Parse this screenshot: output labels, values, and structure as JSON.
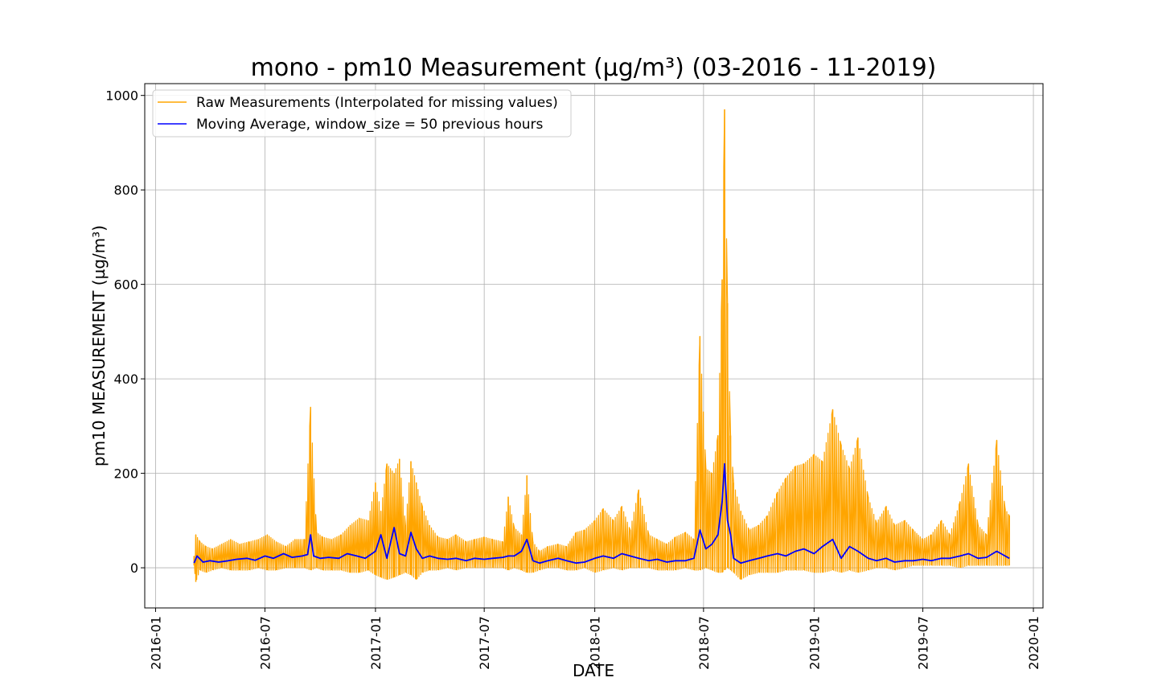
{
  "chart_data": {
    "type": "line",
    "title": "mono - pm10 Measurement (µg/m³) (03-2016 - 11-2019)",
    "xlabel": "DATE",
    "ylabel": "pm10 MEASUREMENT (µg/m³)",
    "xlim": [
      "2015-12-14",
      "2020-01-17"
    ],
    "ylim": [
      -85,
      1025
    ],
    "x_ticks": [
      "2016-01",
      "2016-07",
      "2017-01",
      "2017-07",
      "2018-01",
      "2018-07",
      "2019-01",
      "2019-07",
      "2020-01"
    ],
    "y_ticks": [
      0,
      200,
      400,
      600,
      800,
      1000
    ],
    "grid": true,
    "legend_position": "top-left",
    "series": [
      {
        "name": "Raw Measurements (Interpolated for missing values)",
        "color": "#FFA500",
        "render": "upper-lower-envelope",
        "x": [
          "2016-03-05",
          "2016-03-08",
          "2016-03-15",
          "2016-03-25",
          "2016-04-05",
          "2016-04-20",
          "2016-05-05",
          "2016-05-20",
          "2016-06-05",
          "2016-06-20",
          "2016-07-05",
          "2016-07-20",
          "2016-08-05",
          "2016-08-20",
          "2016-09-05",
          "2016-09-15",
          "2016-09-25",
          "2016-10-05",
          "2016-10-20",
          "2016-11-05",
          "2016-11-20",
          "2016-12-05",
          "2016-12-20",
          "2017-01-01",
          "2017-01-10",
          "2017-01-20",
          "2017-02-01",
          "2017-02-10",
          "2017-02-20",
          "2017-03-01",
          "2017-03-10",
          "2017-03-20",
          "2017-04-01",
          "2017-04-15",
          "2017-05-01",
          "2017-05-15",
          "2017-06-01",
          "2017-06-15",
          "2017-07-01",
          "2017-07-15",
          "2017-08-01",
          "2017-08-10",
          "2017-08-20",
          "2017-09-01",
          "2017-09-10",
          "2017-09-20",
          "2017-10-01",
          "2017-10-15",
          "2017-11-01",
          "2017-11-15",
          "2017-12-01",
          "2017-12-15",
          "2018-01-01",
          "2018-01-15",
          "2018-02-01",
          "2018-02-15",
          "2018-03-01",
          "2018-03-15",
          "2018-04-01",
          "2018-04-15",
          "2018-05-01",
          "2018-05-15",
          "2018-06-01",
          "2018-06-15",
          "2018-06-25",
          "2018-07-05",
          "2018-07-15",
          "2018-07-25",
          "2018-08-01",
          "2018-08-05",
          "2018-08-10",
          "2018-08-15",
          "2018-08-20",
          "2018-09-01",
          "2018-09-15",
          "2018-10-01",
          "2018-10-15",
          "2018-11-01",
          "2018-11-15",
          "2018-12-01",
          "2018-12-15",
          "2019-01-01",
          "2019-01-15",
          "2019-02-01",
          "2019-02-15",
          "2019-03-01",
          "2019-03-15",
          "2019-04-01",
          "2019-04-15",
          "2019-05-01",
          "2019-05-15",
          "2019-06-01",
          "2019-06-15",
          "2019-07-01",
          "2019-07-15",
          "2019-08-01",
          "2019-08-15",
          "2019-09-01",
          "2019-09-15",
          "2019-10-01",
          "2019-10-15",
          "2019-11-01",
          "2019-11-15",
          "2019-11-22"
        ],
        "upper": [
          25,
          70,
          55,
          45,
          40,
          50,
          60,
          50,
          55,
          60,
          70,
          55,
          45,
          60,
          60,
          340,
          75,
          65,
          60,
          70,
          90,
          105,
          100,
          180,
          120,
          220,
          200,
          230,
          90,
          225,
          180,
          130,
          90,
          65,
          60,
          70,
          55,
          60,
          65,
          60,
          55,
          150,
          85,
          70,
          195,
          55,
          35,
          45,
          50,
          45,
          75,
          80,
          100,
          125,
          100,
          130,
          80,
          165,
          70,
          60,
          50,
          65,
          75,
          60,
          490,
          210,
          200,
          280,
          610,
          970,
          560,
          280,
          180,
          120,
          80,
          90,
          110,
          160,
          190,
          215,
          220,
          240,
          225,
          335,
          260,
          210,
          275,
          150,
          95,
          130,
          90,
          100,
          80,
          60,
          70,
          100,
          70,
          140,
          220,
          90,
          70,
          270,
          125,
          110
        ],
        "lower": [
          5,
          -30,
          -5,
          -10,
          -5,
          0,
          -5,
          -5,
          -5,
          0,
          -5,
          -5,
          0,
          0,
          0,
          -5,
          0,
          -5,
          -5,
          -5,
          -10,
          -10,
          -5,
          -15,
          -20,
          -25,
          -20,
          -15,
          -10,
          -15,
          -25,
          -10,
          -5,
          -5,
          0,
          -5,
          0,
          0,
          0,
          0,
          0,
          -5,
          0,
          -5,
          -10,
          -10,
          -5,
          0,
          0,
          -5,
          -5,
          0,
          -10,
          -5,
          0,
          -5,
          0,
          0,
          0,
          -5,
          -5,
          -5,
          0,
          -5,
          -5,
          0,
          -5,
          -10,
          -10,
          -5,
          0,
          -5,
          -10,
          -25,
          -15,
          -10,
          -10,
          -10,
          -5,
          -5,
          -5,
          -10,
          -10,
          -5,
          -10,
          -5,
          -10,
          -5,
          0,
          0,
          -5,
          0,
          5,
          5,
          5,
          5,
          5,
          0,
          5,
          5,
          5,
          5,
          5,
          5
        ]
      },
      {
        "name": "Moving Average, window_size = 50 previous hours",
        "color": "#0000FF",
        "x": [
          "2016-03-05",
          "2016-03-10",
          "2016-03-20",
          "2016-04-01",
          "2016-04-15",
          "2016-05-01",
          "2016-05-15",
          "2016-06-01",
          "2016-06-15",
          "2016-07-01",
          "2016-07-15",
          "2016-08-01",
          "2016-08-15",
          "2016-09-01",
          "2016-09-10",
          "2016-09-15",
          "2016-09-20",
          "2016-10-01",
          "2016-10-15",
          "2016-11-01",
          "2016-11-15",
          "2016-12-01",
          "2016-12-15",
          "2017-01-01",
          "2017-01-10",
          "2017-01-20",
          "2017-02-01",
          "2017-02-10",
          "2017-02-20",
          "2017-03-01",
          "2017-03-10",
          "2017-03-20",
          "2017-04-01",
          "2017-04-15",
          "2017-05-01",
          "2017-05-15",
          "2017-06-01",
          "2017-06-15",
          "2017-07-01",
          "2017-07-15",
          "2017-08-01",
          "2017-08-10",
          "2017-08-20",
          "2017-09-01",
          "2017-09-10",
          "2017-09-20",
          "2017-10-01",
          "2017-10-15",
          "2017-11-01",
          "2017-11-15",
          "2017-12-01",
          "2017-12-15",
          "2018-01-01",
          "2018-01-15",
          "2018-02-01",
          "2018-02-15",
          "2018-03-01",
          "2018-03-15",
          "2018-04-01",
          "2018-04-15",
          "2018-05-01",
          "2018-05-15",
          "2018-06-01",
          "2018-06-15",
          "2018-06-25",
          "2018-07-05",
          "2018-07-15",
          "2018-07-25",
          "2018-08-01",
          "2018-08-05",
          "2018-08-10",
          "2018-08-15",
          "2018-08-20",
          "2018-09-01",
          "2018-09-15",
          "2018-10-01",
          "2018-10-15",
          "2018-11-01",
          "2018-11-15",
          "2018-12-01",
          "2018-12-15",
          "2019-01-01",
          "2019-01-15",
          "2019-02-01",
          "2019-02-15",
          "2019-03-01",
          "2019-03-15",
          "2019-04-01",
          "2019-04-15",
          "2019-05-01",
          "2019-05-15",
          "2019-06-01",
          "2019-06-15",
          "2019-07-01",
          "2019-07-15",
          "2019-08-01",
          "2019-08-15",
          "2019-09-01",
          "2019-09-15",
          "2019-10-01",
          "2019-10-15",
          "2019-11-01",
          "2019-11-15",
          "2019-11-22"
        ],
        "y": [
          10,
          25,
          12,
          15,
          12,
          15,
          18,
          20,
          16,
          25,
          20,
          30,
          22,
          25,
          28,
          70,
          25,
          20,
          22,
          20,
          30,
          25,
          20,
          35,
          70,
          20,
          85,
          30,
          25,
          75,
          40,
          20,
          25,
          20,
          18,
          20,
          15,
          20,
          18,
          20,
          22,
          25,
          25,
          35,
          60,
          15,
          10,
          15,
          20,
          15,
          10,
          12,
          20,
          25,
          20,
          30,
          25,
          20,
          15,
          18,
          12,
          15,
          15,
          20,
          80,
          40,
          50,
          70,
          140,
          220,
          100,
          70,
          20,
          10,
          15,
          20,
          25,
          30,
          25,
          35,
          40,
          30,
          45,
          60,
          20,
          45,
          35,
          20,
          15,
          20,
          12,
          15,
          15,
          18,
          15,
          20,
          20,
          25,
          30,
          20,
          22,
          35,
          25,
          20
        ]
      }
    ]
  }
}
